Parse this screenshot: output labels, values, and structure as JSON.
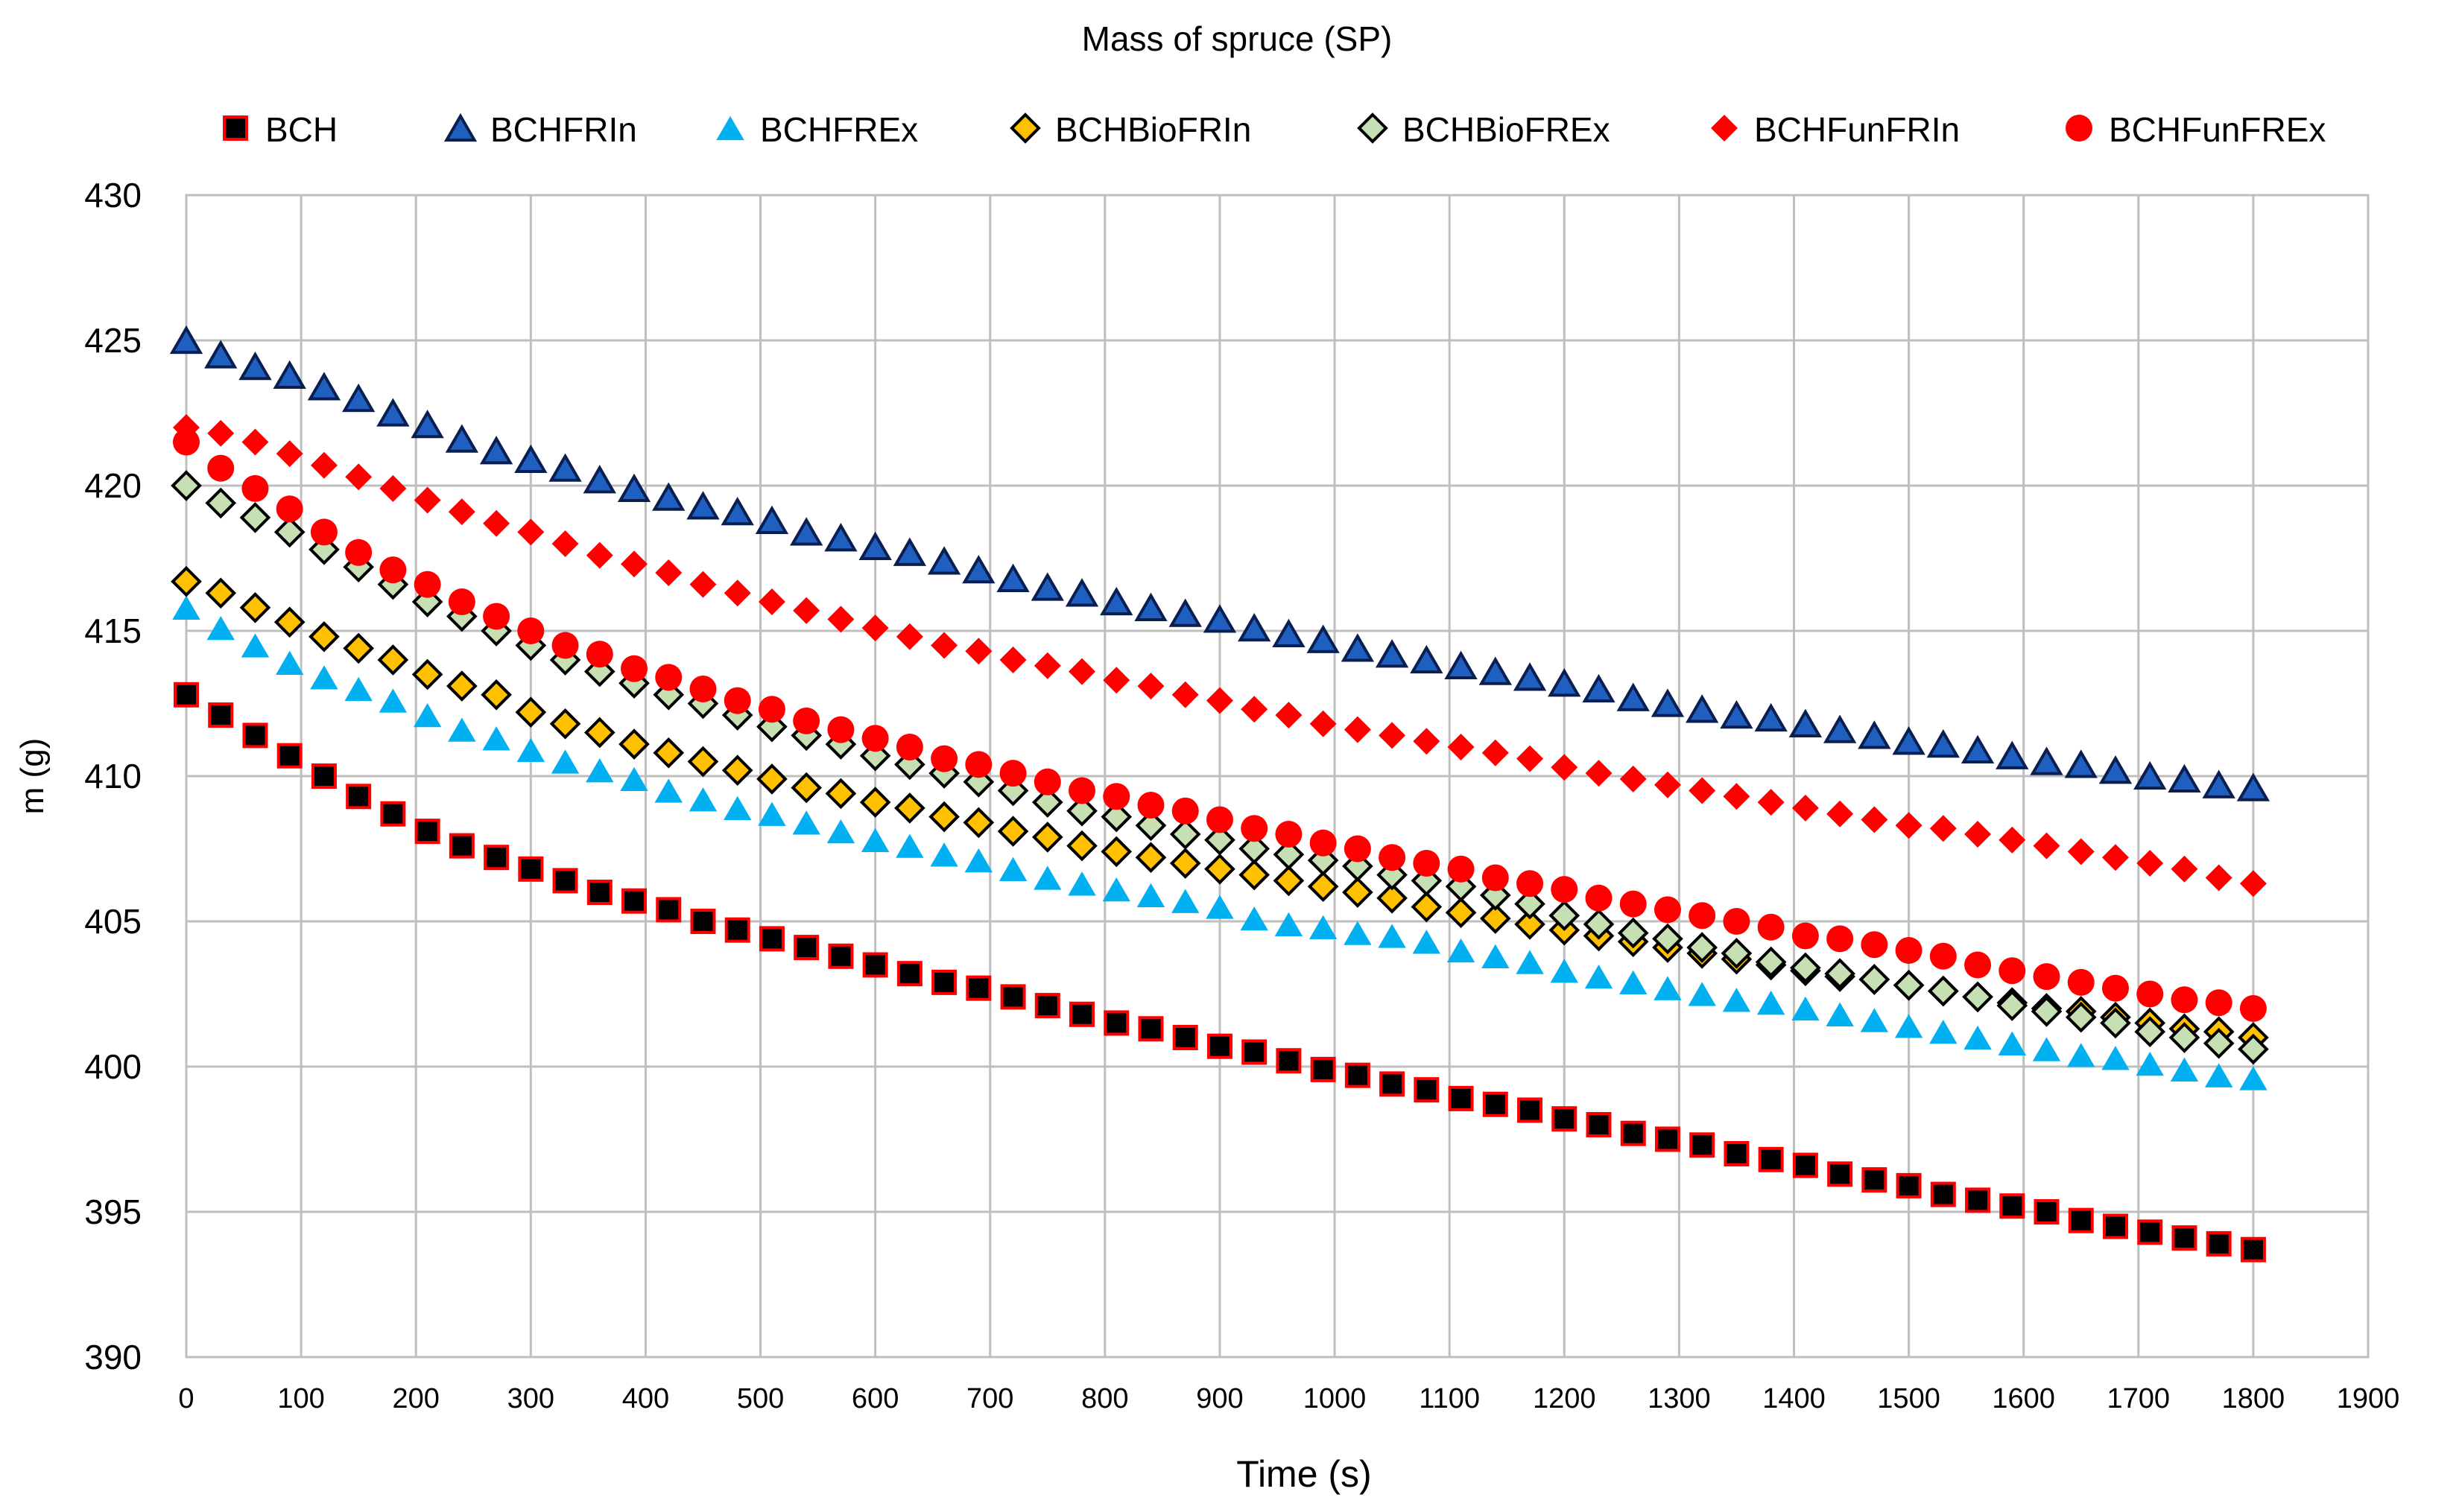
{
  "chart_data": {
    "type": "scatter",
    "title": "Mass of spruce (SP)",
    "xlabel": "Time (s)",
    "ylabel": "m (g)",
    "xlim": [
      0,
      1900
    ],
    "ylim": [
      390,
      430
    ],
    "xticks": [
      0,
      100,
      200,
      300,
      400,
      500,
      600,
      700,
      800,
      900,
      1000,
      1100,
      1200,
      1300,
      1400,
      1500,
      1600,
      1700,
      1800,
      1900
    ],
    "yticks": [
      390,
      395,
      400,
      405,
      410,
      415,
      420,
      425,
      430
    ],
    "grid": true,
    "legend_position": "top",
    "x": [
      0,
      30,
      60,
      90,
      120,
      150,
      180,
      210,
      240,
      270,
      300,
      330,
      360,
      390,
      420,
      450,
      480,
      510,
      540,
      570,
      600,
      630,
      660,
      690,
      720,
      750,
      780,
      810,
      840,
      870,
      900,
      930,
      960,
      990,
      1020,
      1050,
      1080,
      1110,
      1140,
      1170,
      1200,
      1230,
      1260,
      1290,
      1320,
      1350,
      1380,
      1410,
      1440,
      1470,
      1500,
      1530,
      1560,
      1590,
      1620,
      1650,
      1680,
      1710,
      1740,
      1770,
      1800
    ],
    "series": [
      {
        "name": "BCH",
        "marker": "square",
        "fill": "#000000",
        "stroke": "#ff0000",
        "values": [
          412.8,
          412.1,
          411.4,
          410.7,
          410.0,
          409.3,
          408.7,
          408.1,
          407.6,
          407.2,
          406.8,
          406.4,
          406.0,
          405.7,
          405.4,
          405.0,
          404.7,
          404.4,
          404.1,
          403.8,
          403.5,
          403.2,
          402.9,
          402.7,
          402.4,
          402.1,
          401.8,
          401.5,
          401.3,
          401.0,
          400.7,
          400.5,
          400.2,
          399.9,
          399.7,
          399.4,
          399.2,
          398.9,
          398.7,
          398.5,
          398.2,
          398.0,
          397.7,
          397.5,
          397.3,
          397.0,
          396.8,
          396.6,
          396.3,
          396.1,
          395.9,
          395.6,
          395.4,
          395.2,
          395.0,
          394.7,
          394.5,
          394.3,
          394.1,
          393.9,
          393.7
        ]
      },
      {
        "name": "BCHFRIn",
        "marker": "triangle",
        "fill": "#1f5fbf",
        "stroke": "#0a1e50",
        "values": [
          425.0,
          424.5,
          424.1,
          423.8,
          423.4,
          423.0,
          422.5,
          422.1,
          421.6,
          421.2,
          420.9,
          420.6,
          420.2,
          419.9,
          419.6,
          419.3,
          419.1,
          418.8,
          418.4,
          418.2,
          417.9,
          417.7,
          417.4,
          417.1,
          416.8,
          416.5,
          416.3,
          416.0,
          415.8,
          415.6,
          415.4,
          415.1,
          414.9,
          414.7,
          414.4,
          414.2,
          414.0,
          413.8,
          413.6,
          413.4,
          413.2,
          413.0,
          412.7,
          412.5,
          412.3,
          412.1,
          412.0,
          411.8,
          411.6,
          411.4,
          411.2,
          411.1,
          410.9,
          410.7,
          410.5,
          410.4,
          410.2,
          410.0,
          409.9,
          409.7,
          409.6
        ]
      },
      {
        "name": "BCHFREx",
        "marker": "triangle",
        "fill": "#00b0f0",
        "stroke": "none",
        "values": [
          415.8,
          415.1,
          414.5,
          413.9,
          413.4,
          413.0,
          412.6,
          412.1,
          411.6,
          411.3,
          410.9,
          410.5,
          410.2,
          409.9,
          409.5,
          409.2,
          408.9,
          408.7,
          408.4,
          408.1,
          407.8,
          407.6,
          407.3,
          407.1,
          406.8,
          406.5,
          406.3,
          406.1,
          405.9,
          405.7,
          405.5,
          405.1,
          404.9,
          404.8,
          404.6,
          404.5,
          404.3,
          404.0,
          403.8,
          403.6,
          403.3,
          403.1,
          402.9,
          402.7,
          402.5,
          402.3,
          402.2,
          402.0,
          401.8,
          401.6,
          401.4,
          401.2,
          401.0,
          400.8,
          400.6,
          400.4,
          400.3,
          400.1,
          399.9,
          399.7,
          399.6
        ]
      },
      {
        "name": "BCHBioFRIn",
        "marker": "diamond",
        "fill": "#ffc000",
        "stroke": "#000000",
        "values": [
          416.7,
          416.3,
          415.8,
          415.3,
          414.8,
          414.4,
          414.0,
          413.5,
          413.1,
          412.8,
          412.2,
          411.8,
          411.5,
          411.1,
          410.8,
          410.5,
          410.2,
          409.9,
          409.6,
          409.4,
          409.1,
          408.9,
          408.6,
          408.4,
          408.1,
          407.9,
          407.6,
          407.4,
          407.2,
          407.0,
          406.8,
          406.6,
          406.4,
          406.2,
          406.0,
          405.8,
          405.5,
          405.3,
          405.1,
          404.9,
          404.7,
          404.5,
          404.3,
          404.1,
          403.9,
          403.7,
          403.5,
          403.3,
          403.1,
          403.0,
          402.8,
          402.6,
          402.4,
          402.2,
          402.0,
          401.9,
          401.7,
          401.5,
          401.3,
          401.2,
          401.0
        ]
      },
      {
        "name": "BCHBioFREx",
        "marker": "diamond",
        "fill": "#c6e0b4",
        "stroke": "#000000",
        "values": [
          420.0,
          419.4,
          418.9,
          418.4,
          417.8,
          417.2,
          416.6,
          416.0,
          415.5,
          415.0,
          414.5,
          414.0,
          413.6,
          413.2,
          412.8,
          412.5,
          412.1,
          411.7,
          411.4,
          411.1,
          410.7,
          410.4,
          410.1,
          409.8,
          409.5,
          409.1,
          408.8,
          408.6,
          408.3,
          408.0,
          407.8,
          407.5,
          407.3,
          407.1,
          406.9,
          406.6,
          406.4,
          406.2,
          405.9,
          405.6,
          405.2,
          404.9,
          404.6,
          404.4,
          404.1,
          403.9,
          403.6,
          403.4,
          403.2,
          403.0,
          402.8,
          402.6,
          402.4,
          402.1,
          401.9,
          401.7,
          401.5,
          401.2,
          401.0,
          400.8,
          400.6
        ]
      },
      {
        "name": "BCHFunFRIn",
        "marker": "diamond",
        "fill": "#ff0000",
        "stroke": "none",
        "values": [
          422.0,
          421.8,
          421.5,
          421.1,
          420.7,
          420.3,
          419.9,
          419.5,
          419.1,
          418.7,
          418.4,
          418.0,
          417.6,
          417.3,
          417.0,
          416.6,
          416.3,
          416.0,
          415.7,
          415.4,
          415.1,
          414.8,
          414.5,
          414.3,
          414.0,
          413.8,
          413.6,
          413.3,
          413.1,
          412.8,
          412.6,
          412.3,
          412.1,
          411.8,
          411.6,
          411.4,
          411.2,
          411.0,
          410.8,
          410.6,
          410.3,
          410.1,
          409.9,
          409.7,
          409.5,
          409.3,
          409.1,
          408.9,
          408.7,
          408.5,
          408.3,
          408.2,
          408.0,
          407.8,
          407.6,
          407.4,
          407.2,
          407.0,
          406.8,
          406.5,
          406.3
        ]
      },
      {
        "name": "BCHFunFREx",
        "marker": "circle",
        "fill": "#ff0000",
        "stroke": "none",
        "values": [
          421.5,
          420.6,
          419.9,
          419.2,
          418.4,
          417.7,
          417.1,
          416.6,
          416.0,
          415.5,
          415.0,
          414.5,
          414.2,
          413.7,
          413.4,
          413.0,
          412.6,
          412.3,
          411.9,
          411.6,
          411.3,
          411.0,
          410.6,
          410.4,
          410.1,
          409.8,
          409.5,
          409.3,
          409.0,
          408.8,
          408.5,
          408.2,
          408.0,
          407.7,
          407.5,
          407.2,
          407.0,
          406.8,
          406.5,
          406.3,
          406.1,
          405.8,
          405.6,
          405.4,
          405.2,
          405.0,
          404.8,
          404.5,
          404.4,
          404.2,
          404.0,
          403.8,
          403.5,
          403.3,
          403.1,
          402.9,
          402.7,
          402.5,
          402.3,
          402.2,
          402.0
        ]
      }
    ]
  }
}
